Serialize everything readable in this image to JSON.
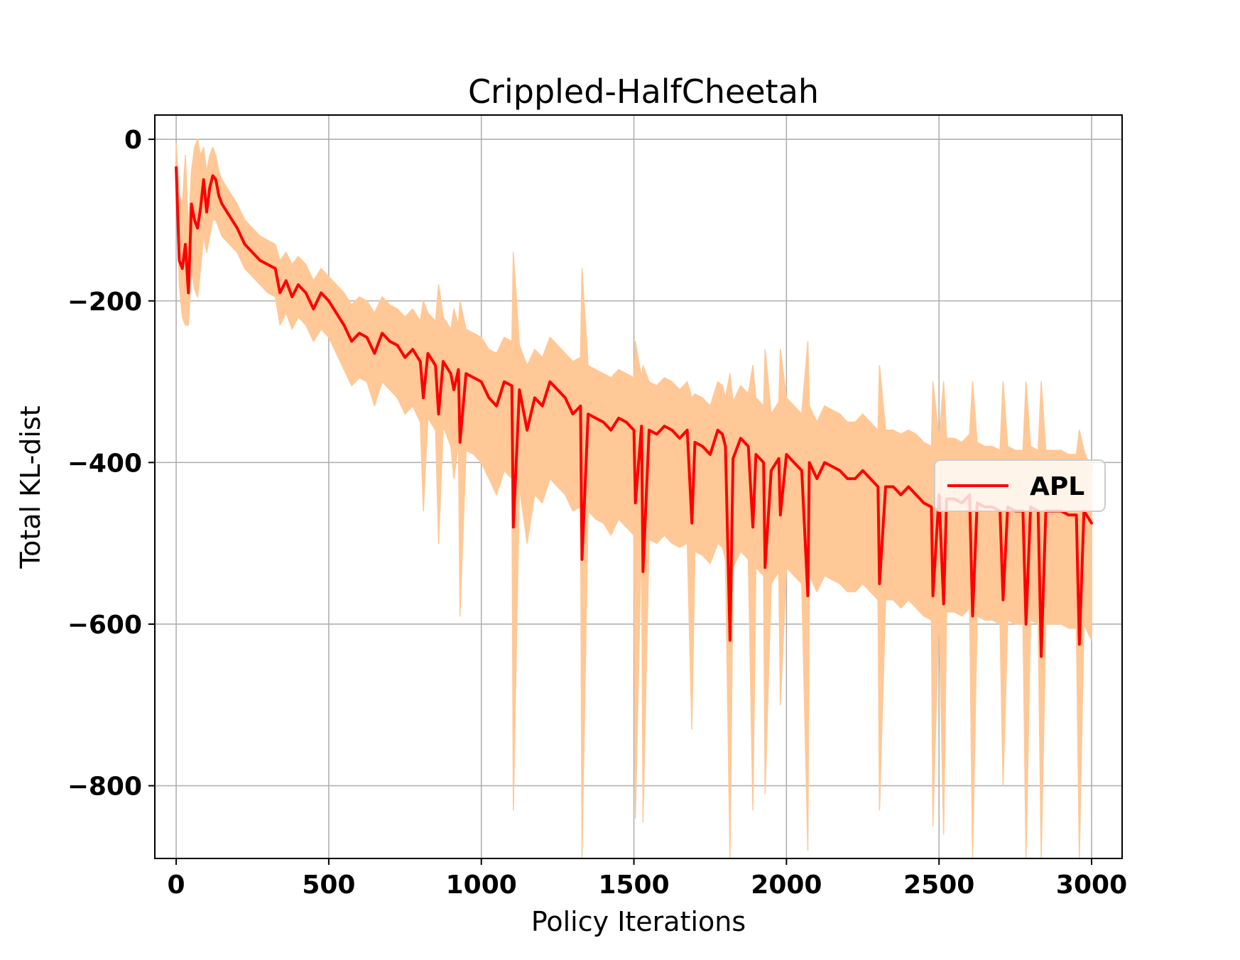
{
  "chart_data": {
    "type": "line",
    "title": "Crippled-HalfCheetah",
    "xlabel": "Policy Iterations",
    "ylabel": "Total KL-dist",
    "xlim": [
      -70,
      3100
    ],
    "ylim": [
      -890,
      30
    ],
    "xticks": [
      0,
      500,
      1000,
      1500,
      2000,
      2500,
      3000
    ],
    "xtick_labels": [
      "0",
      "500",
      "1000",
      "1500",
      "2000",
      "2500",
      "3000"
    ],
    "yticks": [
      0,
      -200,
      -400,
      -600,
      -800
    ],
    "ytick_labels": [
      "0",
      "−200",
      "−400",
      "−600",
      "−800"
    ],
    "grid": true,
    "legend": {
      "position": "center-right",
      "entries": [
        "APL"
      ]
    },
    "colors": {
      "line": "#ff0000",
      "band": "#ffc896",
      "grid": "#b0b0b0"
    },
    "series": [
      {
        "name": "APL",
        "x": [
          0,
          10,
          20,
          30,
          40,
          50,
          60,
          70,
          80,
          90,
          100,
          110,
          120,
          130,
          140,
          150,
          175,
          200,
          225,
          250,
          275,
          300,
          325,
          340,
          360,
          380,
          400,
          425,
          450,
          475,
          500,
          525,
          550,
          575,
          600,
          625,
          650,
          675,
          700,
          725,
          750,
          775,
          800,
          810,
          825,
          850,
          860,
          875,
          900,
          910,
          925,
          930,
          950,
          975,
          1000,
          1025,
          1050,
          1075,
          1100,
          1105,
          1125,
          1150,
          1175,
          1200,
          1225,
          1250,
          1275,
          1300,
          1325,
          1330,
          1350,
          1375,
          1400,
          1425,
          1450,
          1475,
          1500,
          1505,
          1525,
          1530,
          1550,
          1575,
          1600,
          1625,
          1650,
          1675,
          1690,
          1700,
          1725,
          1750,
          1775,
          1790,
          1800,
          1815,
          1825,
          1850,
          1875,
          1890,
          1900,
          1925,
          1930,
          1950,
          1975,
          1980,
          2000,
          2025,
          2050,
          2070,
          2075,
          2100,
          2125,
          2150,
          2175,
          2200,
          2225,
          2250,
          2275,
          2300,
          2305,
          2325,
          2350,
          2375,
          2400,
          2425,
          2450,
          2475,
          2480,
          2500,
          2515,
          2525,
          2550,
          2575,
          2600,
          2610,
          2625,
          2650,
          2675,
          2700,
          2710,
          2725,
          2750,
          2775,
          2785,
          2800,
          2825,
          2835,
          2850,
          2875,
          2900,
          2925,
          2950,
          2960,
          2975,
          3000
        ],
        "values": [
          -35,
          -150,
          -160,
          -130,
          -190,
          -80,
          -100,
          -110,
          -85,
          -50,
          -90,
          -60,
          -45,
          -50,
          -70,
          -80,
          -95,
          -110,
          -130,
          -140,
          -150,
          -155,
          -160,
          -190,
          -175,
          -195,
          -180,
          -190,
          -210,
          -190,
          -200,
          -215,
          -230,
          -250,
          -240,
          -245,
          -265,
          -240,
          -250,
          -255,
          -270,
          -260,
          -275,
          -320,
          -265,
          -280,
          -340,
          -275,
          -290,
          -310,
          -285,
          -375,
          -290,
          -295,
          -300,
          -320,
          -330,
          -300,
          -305,
          -480,
          -310,
          -360,
          -320,
          -330,
          -300,
          -310,
          -320,
          -340,
          -330,
          -520,
          -340,
          -345,
          -350,
          -360,
          -345,
          -350,
          -360,
          -450,
          -355,
          -535,
          -360,
          -365,
          -355,
          -360,
          -370,
          -360,
          -475,
          -375,
          -380,
          -390,
          -360,
          -365,
          -380,
          -620,
          -395,
          -370,
          -380,
          -480,
          -390,
          -400,
          -530,
          -410,
          -395,
          -465,
          -390,
          -400,
          -410,
          -565,
          -400,
          -420,
          -400,
          -405,
          -410,
          -420,
          -420,
          -410,
          -420,
          -430,
          -550,
          -430,
          -430,
          -440,
          -430,
          -440,
          -450,
          -455,
          -565,
          -440,
          -575,
          -445,
          -445,
          -450,
          -440,
          -590,
          -450,
          -455,
          -455,
          -460,
          -570,
          -455,
          -460,
          -460,
          -600,
          -455,
          -460,
          -640,
          -460,
          -460,
          -460,
          -465,
          -465,
          -625,
          -460,
          -475
        ],
        "band_lower": [
          -10,
          -180,
          -220,
          -230,
          -230,
          -160,
          -185,
          -195,
          -160,
          -120,
          -140,
          -120,
          -100,
          -100,
          -110,
          -120,
          -130,
          -140,
          -160,
          -170,
          -180,
          -190,
          -195,
          -230,
          -215,
          -235,
          -220,
          -230,
          -250,
          -235,
          -245,
          -265,
          -285,
          -305,
          -295,
          -300,
          -330,
          -300,
          -310,
          -320,
          -340,
          -330,
          -350,
          -460,
          -345,
          -360,
          -500,
          -355,
          -380,
          -420,
          -375,
          -590,
          -385,
          -390,
          -400,
          -420,
          -440,
          -410,
          -420,
          -830,
          -430,
          -500,
          -440,
          -450,
          -420,
          -430,
          -440,
          -460,
          -455,
          -890,
          -460,
          -470,
          -475,
          -490,
          -470,
          -480,
          -490,
          -840,
          -490,
          -845,
          -495,
          -500,
          -490,
          -500,
          -505,
          -500,
          -730,
          -510,
          -515,
          -525,
          -500,
          -505,
          -520,
          -890,
          -530,
          -510,
          -520,
          -830,
          -530,
          -540,
          -810,
          -550,
          -535,
          -700,
          -530,
          -540,
          -550,
          -880,
          -540,
          -560,
          -540,
          -545,
          -550,
          -560,
          -560,
          -550,
          -560,
          -570,
          -830,
          -570,
          -570,
          -580,
          -570,
          -580,
          -590,
          -595,
          -850,
          -580,
          -860,
          -585,
          -585,
          -590,
          -580,
          -890,
          -590,
          -595,
          -595,
          -600,
          -800,
          -595,
          -600,
          -600,
          -890,
          -595,
          -600,
          -890,
          -600,
          -600,
          -600,
          -605,
          -605,
          -890,
          -600,
          -620
        ],
        "band_upper": [
          -5,
          -70,
          -80,
          -20,
          -110,
          -40,
          -10,
          0,
          -20,
          -10,
          -40,
          -20,
          -10,
          -20,
          -40,
          -50,
          -65,
          -80,
          -100,
          -110,
          -120,
          -125,
          -130,
          -150,
          -140,
          -155,
          -145,
          -155,
          -175,
          -160,
          -170,
          -180,
          -190,
          -205,
          -195,
          -200,
          -215,
          -195,
          -205,
          -210,
          -220,
          -210,
          -225,
          -200,
          -215,
          -225,
          -180,
          -220,
          -235,
          -210,
          -230,
          -200,
          -235,
          -240,
          -245,
          -260,
          -265,
          -245,
          -250,
          -140,
          -255,
          -280,
          -260,
          -270,
          -245,
          -255,
          -265,
          -275,
          -270,
          -160,
          -280,
          -285,
          -290,
          -295,
          -285,
          -290,
          -295,
          -250,
          -295,
          -280,
          -300,
          -305,
          -295,
          -300,
          -310,
          -300,
          -320,
          -315,
          -320,
          -330,
          -300,
          -305,
          -320,
          -290,
          -325,
          -305,
          -315,
          -280,
          -320,
          -330,
          -260,
          -340,
          -325,
          -260,
          -320,
          -330,
          -340,
          -250,
          -330,
          -350,
          -330,
          -335,
          -340,
          -350,
          -350,
          -340,
          -350,
          -360,
          -280,
          -360,
          -360,
          -365,
          -360,
          -365,
          -375,
          -380,
          -300,
          -370,
          -300,
          -370,
          -370,
          -375,
          -365,
          -300,
          -375,
          -380,
          -380,
          -385,
          -300,
          -380,
          -385,
          -385,
          -300,
          -380,
          -385,
          -300,
          -385,
          -385,
          -385,
          -390,
          -390,
          -360,
          -385,
          -410
        ]
      }
    ]
  }
}
